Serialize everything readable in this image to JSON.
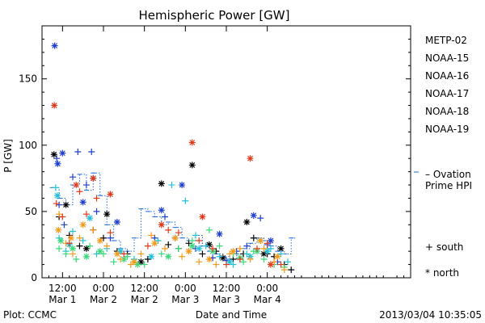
{
  "chart_data": {
    "type": "scatter",
    "title": "Hemispheric Power [GW]",
    "ylabel": "P [GW]",
    "xlabel": "Date and Time",
    "ylim": [
      0,
      190
    ],
    "yticks": [
      0,
      50,
      100,
      150
    ],
    "x_unit": "hours since 2013-02-28 00:00",
    "xlim": [
      6,
      114
    ],
    "xticks": [
      {
        "x": 12,
        "line1": "12:00",
        "line2": "Mar 1"
      },
      {
        "x": 24,
        "line1": "0:00",
        "line2": "Mar 2"
      },
      {
        "x": 36,
        "line1": "12:00",
        "line2": "Mar 2"
      },
      {
        "x": 48,
        "line1": "0:00",
        "line2": "Mar 3"
      },
      {
        "x": 60,
        "line1": "12:00",
        "line2": "Mar 3"
      },
      {
        "x": 72,
        "line1": "0:00",
        "line2": "Mar 4"
      }
    ],
    "series": [
      {
        "name": "METP-02",
        "color": "#000000",
        "north": [
          [
            9.5,
            93
          ],
          [
            13,
            55
          ],
          [
            19,
            22
          ],
          [
            25,
            48
          ],
          [
            35,
            12
          ],
          [
            41,
            71
          ],
          [
            50,
            85
          ],
          [
            55,
            25
          ],
          [
            59,
            15
          ],
          [
            66,
            42
          ],
          [
            71,
            18
          ],
          [
            76,
            22
          ]
        ],
        "south": [
          [
            11,
            46
          ],
          [
            14,
            32
          ],
          [
            17,
            24
          ],
          [
            21,
            36
          ],
          [
            24,
            30
          ],
          [
            28,
            20
          ],
          [
            31,
            18
          ],
          [
            37,
            14
          ],
          [
            43,
            25
          ],
          [
            46,
            22
          ],
          [
            49,
            26
          ],
          [
            53,
            18
          ],
          [
            57,
            20
          ],
          [
            62,
            14
          ],
          [
            65,
            18
          ],
          [
            68,
            30
          ],
          [
            72,
            18
          ],
          [
            74,
            16
          ],
          [
            77,
            10
          ],
          [
            79,
            6
          ]
        ]
      },
      {
        "name": "NOAA-15",
        "color": "#1f3fd0",
        "north": [
          [
            9.7,
            175
          ],
          [
            10.6,
            86
          ],
          [
            12,
            94
          ],
          [
            18,
            57
          ],
          [
            21,
            75
          ],
          [
            28,
            42
          ],
          [
            41,
            51
          ],
          [
            47,
            70
          ],
          [
            58,
            33
          ],
          [
            68,
            47
          ],
          [
            73,
            28
          ]
        ],
        "south": [
          [
            10.3,
            90
          ],
          [
            11,
            55
          ],
          [
            12.5,
            40
          ],
          [
            15,
            76
          ],
          [
            16.5,
            95
          ],
          [
            19,
            70
          ],
          [
            20.5,
            95
          ],
          [
            22,
            50
          ],
          [
            26,
            30
          ],
          [
            39,
            30
          ],
          [
            42,
            46
          ],
          [
            45,
            30
          ],
          [
            51,
            22
          ],
          [
            56,
            15
          ],
          [
            60,
            13
          ],
          [
            63,
            20
          ],
          [
            66,
            24
          ],
          [
            70,
            45
          ],
          [
            72,
            25
          ],
          [
            75,
            12
          ]
        ]
      },
      {
        "name": "NOAA-16",
        "color": "#22c0d8",
        "north": [
          [
            10.5,
            62
          ],
          [
            14,
            25
          ],
          [
            20,
            45
          ],
          [
            29,
            20
          ],
          [
            38,
            16
          ],
          [
            52,
            22
          ],
          [
            61,
            12
          ],
          [
            67,
            16
          ],
          [
            72,
            20
          ]
        ],
        "south": [
          [
            10,
            68
          ],
          [
            11,
            30
          ],
          [
            13,
            20
          ],
          [
            15,
            35
          ],
          [
            18,
            28
          ],
          [
            22,
            18
          ],
          [
            25,
            22
          ],
          [
            33,
            14
          ],
          [
            40,
            28
          ],
          [
            44,
            70
          ],
          [
            48,
            58
          ],
          [
            51,
            32
          ],
          [
            54,
            24
          ],
          [
            58,
            16
          ],
          [
            62,
            10
          ],
          [
            66,
            18
          ],
          [
            70,
            28
          ],
          [
            73,
            22
          ],
          [
            76,
            18
          ],
          [
            78,
            12
          ]
        ]
      },
      {
        "name": "NOAA-17",
        "color": "#3ad878",
        "north": [
          [
            11.5,
            28
          ],
          [
            15,
            22
          ],
          [
            19,
            16
          ],
          [
            23,
            20
          ],
          [
            30,
            14
          ],
          [
            34,
            10
          ],
          [
            43,
            16
          ],
          [
            50,
            24
          ],
          [
            56,
            20
          ],
          [
            64,
            15
          ],
          [
            69,
            20
          ]
        ],
        "south": [
          [
            11,
            22
          ],
          [
            13,
            18
          ],
          [
            16,
            14
          ],
          [
            20,
            24
          ],
          [
            24,
            18
          ],
          [
            27,
            12
          ],
          [
            31,
            16
          ],
          [
            36,
            10
          ],
          [
            41,
            18
          ],
          [
            46,
            22
          ],
          [
            50,
            28
          ],
          [
            55,
            36
          ],
          [
            58,
            24
          ],
          [
            62,
            18
          ],
          [
            65,
            12
          ],
          [
            68,
            20
          ],
          [
            71,
            14
          ],
          [
            74,
            10
          ],
          [
            77,
            8
          ]
        ]
      },
      {
        "name": "NOAA-18",
        "color": "#f39a1a",
        "north": [
          [
            10.8,
            36
          ],
          [
            14.5,
            30
          ],
          [
            18,
            40
          ],
          [
            23,
            28
          ],
          [
            28,
            18
          ],
          [
            33,
            12
          ],
          [
            39,
            26
          ],
          [
            45,
            30
          ],
          [
            49,
            20
          ],
          [
            55,
            14
          ],
          [
            62,
            20
          ],
          [
            70,
            28
          ],
          [
            75,
            16
          ]
        ],
        "south": [
          [
            11,
            48
          ],
          [
            13,
            26
          ],
          [
            15,
            18
          ],
          [
            17,
            30
          ],
          [
            21,
            36
          ],
          [
            25,
            24
          ],
          [
            29,
            14
          ],
          [
            32,
            10
          ],
          [
            35,
            18
          ],
          [
            38,
            32
          ],
          [
            42,
            22
          ],
          [
            47,
            16
          ],
          [
            52,
            12
          ],
          [
            57,
            10
          ],
          [
            61,
            18
          ],
          [
            64,
            22
          ],
          [
            67,
            14
          ],
          [
            71,
            22
          ],
          [
            74,
            12
          ],
          [
            77,
            6
          ]
        ]
      },
      {
        "name": "NOAA-19",
        "color": "#e03a1a",
        "north": [
          [
            9.6,
            130
          ],
          [
            16,
            70
          ],
          [
            21,
            75
          ],
          [
            26,
            63
          ],
          [
            41,
            40
          ],
          [
            50,
            102
          ],
          [
            53,
            46
          ],
          [
            67,
            90
          ],
          [
            73,
            10
          ]
        ],
        "south": [
          [
            10.2,
            56
          ],
          [
            12,
            46
          ],
          [
            14,
            26
          ],
          [
            17,
            65
          ],
          [
            19,
            48
          ],
          [
            22,
            60
          ],
          [
            26,
            34
          ],
          [
            30,
            18
          ],
          [
            37,
            24
          ],
          [
            43,
            36
          ],
          [
            46,
            34
          ],
          [
            52,
            28
          ],
          [
            56,
            22
          ],
          [
            60,
            10
          ],
          [
            64,
            14
          ],
          [
            69,
            22
          ],
          [
            72,
            26
          ],
          [
            76,
            10
          ]
        ]
      }
    ],
    "ovation": {
      "label_line1": "– Ovation",
      "label_line2": "Prime HPI",
      "color": "#1f6ad8",
      "points": [
        [
          9,
          68
        ],
        [
          11,
          60
        ],
        [
          13,
          55
        ],
        [
          15,
          70
        ],
        [
          17,
          78
        ],
        [
          19,
          66
        ],
        [
          21,
          79
        ],
        [
          23,
          62
        ],
        [
          25,
          40
        ],
        [
          27,
          28
        ],
        [
          29,
          22
        ],
        [
          31,
          20
        ],
        [
          33,
          30
        ],
        [
          35,
          52
        ],
        [
          37,
          50
        ],
        [
          39,
          46
        ],
        [
          41,
          40
        ],
        [
          43,
          42
        ],
        [
          45,
          38
        ],
        [
          47,
          30
        ],
        [
          49,
          28
        ],
        [
          51,
          32
        ],
        [
          53,
          24
        ],
        [
          55,
          20
        ],
        [
          57,
          18
        ],
        [
          59,
          16
        ],
        [
          61,
          14
        ],
        [
          63,
          18
        ],
        [
          65,
          22
        ],
        [
          67,
          26
        ],
        [
          69,
          30
        ],
        [
          71,
          28
        ],
        [
          73,
          24
        ],
        [
          75,
          20
        ],
        [
          77,
          18
        ],
        [
          79,
          30
        ]
      ]
    },
    "legend": {
      "position": "right",
      "south_label": "+ south",
      "north_label": "* north"
    },
    "footer_left": "Plot: CCMC",
    "footer_right": "2013/03/04 10:35:05"
  }
}
